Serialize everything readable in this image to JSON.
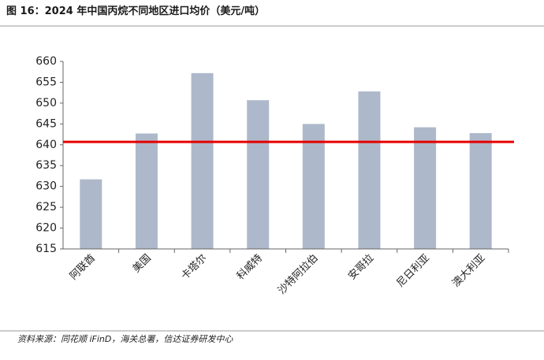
{
  "chart_data": {
    "type": "bar",
    "title": "图 16：2024 年中国丙烷不同地区进口均价（美元/吨）",
    "source": "资料来源：同花顺 iFinD，海关总署，信达证券研发中心",
    "categories": [
      "阿联酋",
      "美国",
      "卡塔尔",
      "科威特",
      "沙特阿拉伯",
      "安哥拉",
      "尼日利亚",
      "澳大利亚"
    ],
    "values": [
      631.7,
      642.7,
      657.2,
      650.7,
      645.0,
      652.8,
      644.2,
      642.8
    ],
    "color": "#adb9ca",
    "ylim": [
      615,
      660
    ],
    "yticks": [
      615,
      620,
      625,
      630,
      635,
      640,
      645,
      650,
      655,
      660
    ],
    "reference_lines": [
      {
        "value": 640.7,
        "color": "#e60000"
      }
    ]
  }
}
